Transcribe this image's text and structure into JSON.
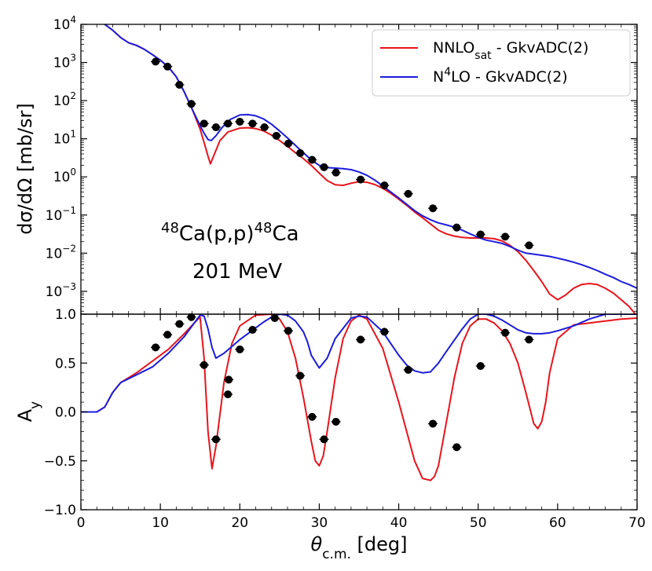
{
  "chart_data": [
    {
      "type": "line",
      "panel": "top",
      "yscale": "log",
      "xlim": [
        0,
        70
      ],
      "ylim_exp": [
        -3.6,
        4
      ],
      "ylabel": "dσ/dΩ [mb/sr]",
      "y_ticks": [
        {
          "base": "10",
          "exp": "4",
          "value": 10000
        },
        {
          "base": "10",
          "exp": "3",
          "value": 1000
        },
        {
          "base": "10",
          "exp": "2",
          "value": 100
        },
        {
          "base": "10",
          "exp": "1",
          "value": 10
        },
        {
          "base": "10",
          "exp": "0",
          "value": 1
        },
        {
          "base": "10",
          "exp": "−1",
          "value": 0.1
        },
        {
          "base": "10",
          "exp": "−2",
          "value": 0.01
        },
        {
          "base": "10",
          "exp": "−3",
          "value": 0.001
        }
      ],
      "annotation": {
        "pre": "48",
        "mid": "Ca(p,p)",
        "sup2": "48",
        "post": "Ca",
        "energy": "201 MeV"
      },
      "legend": [
        {
          "main": "NNLO",
          "sub": "sat",
          "rest": " - GkvADC(2)",
          "color": "#e8141c"
        },
        {
          "main": "N",
          "sup": "4",
          "rest": "LO - GkvADC(2)",
          "color": "#1c1cdc"
        }
      ],
      "series": [
        {
          "name": "NNLOsat - GkvADC(2)",
          "color": "#e8141c",
          "x": [
            3,
            4,
            5,
            6,
            7,
            8,
            9,
            10,
            11,
            12,
            13,
            14,
            15,
            15.5,
            16,
            16.3,
            16.7,
            17.5,
            18.5,
            20,
            21,
            22,
            23,
            24,
            25,
            26,
            27,
            28,
            29,
            30,
            31,
            32,
            33,
            34,
            35,
            36,
            37,
            38,
            39,
            40,
            41,
            42,
            43,
            44,
            45,
            46,
            47,
            48,
            49,
            50,
            51,
            52,
            53,
            54,
            55,
            56,
            57,
            58,
            59,
            60,
            61,
            62,
            63,
            64,
            65,
            66,
            67,
            68,
            69,
            70
          ],
          "y": [
            10000,
            7000,
            4500,
            3300,
            2800,
            2200,
            1600,
            1150,
            760,
            420,
            170,
            60,
            18,
            8,
            3.5,
            2.2,
            3.5,
            9,
            15,
            19,
            19.5,
            18.5,
            16,
            12.5,
            9,
            6.3,
            4.3,
            3,
            2,
            1.25,
            0.8,
            0.62,
            0.6,
            0.68,
            0.75,
            0.72,
            0.63,
            0.5,
            0.37,
            0.26,
            0.18,
            0.12,
            0.085,
            0.058,
            0.04,
            0.032,
            0.028,
            0.026,
            0.025,
            0.025,
            0.025,
            0.024,
            0.021,
            0.016,
            0.011,
            0.0065,
            0.0035,
            0.0018,
            0.00085,
            0.0006,
            0.0008,
            0.0012,
            0.0015,
            0.0016,
            0.0015,
            0.0012,
            0.0009,
            0.0006,
            0.0004,
            0.00022
          ]
        },
        {
          "name": "N4LO - GkvADC(2)",
          "color": "#1c1cdc",
          "x": [
            3,
            4,
            5,
            6,
            7,
            8,
            9,
            10,
            11,
            12,
            13,
            14,
            15,
            15.5,
            16,
            16.4,
            17,
            17.8,
            18.8,
            20,
            21,
            22,
            23,
            24,
            25,
            26,
            27,
            28,
            29,
            30,
            31,
            32,
            33,
            34,
            35,
            36,
            37,
            38,
            39,
            40,
            41,
            42,
            43,
            44,
            45,
            46,
            47,
            48,
            49,
            50,
            51,
            52,
            53,
            54,
            55,
            56,
            57,
            58,
            59,
            60,
            61,
            62,
            63,
            64,
            65,
            66,
            67,
            68,
            69,
            70
          ],
          "y": [
            10000,
            7000,
            4500,
            3300,
            2800,
            2200,
            1600,
            1150,
            760,
            420,
            170,
            60,
            22,
            14,
            9.5,
            9,
            12,
            20,
            32,
            42,
            43,
            40,
            33,
            24,
            16,
            10.5,
            6.7,
            4.3,
            2.8,
            2,
            1.75,
            1.7,
            1.65,
            1.55,
            1.35,
            1.1,
            0.82,
            0.58,
            0.4,
            0.28,
            0.19,
            0.13,
            0.095,
            0.075,
            0.062,
            0.055,
            0.048,
            0.04,
            0.032,
            0.026,
            0.022,
            0.02,
            0.018,
            0.015,
            0.012,
            0.01,
            0.0094,
            0.0088,
            0.0082,
            0.0074,
            0.0066,
            0.0058,
            0.005,
            0.0042,
            0.0035,
            0.0028,
            0.0023,
            0.0018,
            0.0015,
            0.0012
          ]
        },
        {
          "name": "data",
          "type": "scatter",
          "color": "#000000",
          "x": [
            9.4,
            10.9,
            12.4,
            13.9,
            15.5,
            17,
            18.5,
            20,
            21.6,
            23.1,
            24.6,
            26.1,
            27.6,
            29.1,
            30.6,
            32.1,
            35.2,
            38.2,
            41.2,
            44.3,
            47.3,
            50.3,
            53.4,
            56.4
          ],
          "y": [
            1050,
            780,
            260,
            82,
            25,
            20,
            25,
            28,
            25,
            20,
            12,
            7.5,
            4.2,
            2.8,
            1.8,
            1.3,
            0.85,
            0.6,
            0.36,
            0.15,
            0.047,
            0.031,
            0.027,
            0.016
          ]
        }
      ]
    },
    {
      "type": "line",
      "panel": "bottom",
      "xlim": [
        0,
        70
      ],
      "ylim": [
        -1.0,
        1.0
      ],
      "xlabel_main": "θ",
      "xlabel_sub": "c.m.",
      "xlabel_rest": " [deg]",
      "ylabel_main": "A",
      "ylabel_sub": "y",
      "x_ticks": [
        "0",
        "10",
        "20",
        "30",
        "40",
        "50",
        "60",
        "70"
      ],
      "y_ticks": [
        "1.0",
        "0.5",
        "0.0",
        "−0.5",
        "−1.0"
      ],
      "series": [
        {
          "name": "NNLOsat - GkvADC(2)",
          "color": "#e8141c",
          "x": [
            0,
            1,
            2,
            3,
            4,
            5,
            7,
            9,
            11,
            13,
            14.5,
            15,
            15.5,
            16,
            16.5,
            17,
            18,
            19,
            20,
            22,
            24,
            25,
            26,
            27,
            28,
            29,
            29.5,
            30,
            30.5,
            31,
            32,
            33,
            34,
            35,
            36,
            38,
            40,
            42,
            43,
            44,
            44.5,
            45,
            46,
            47,
            48,
            49,
            50,
            51,
            52,
            53,
            54,
            55,
            56,
            57,
            57.5,
            58,
            58.5,
            59,
            60,
            62,
            64,
            66,
            68,
            70
          ],
          "y": [
            0,
            0,
            0,
            0.05,
            0.2,
            0.3,
            0.4,
            0.52,
            0.64,
            0.8,
            0.93,
            0.97,
            0.55,
            -0.2,
            -0.58,
            -0.35,
            0.3,
            0.7,
            0.88,
            0.99,
            1.0,
            0.95,
            0.82,
            0.55,
            0.15,
            -0.3,
            -0.5,
            -0.55,
            -0.45,
            -0.2,
            0.35,
            0.75,
            0.93,
            0.99,
            0.95,
            0.65,
            0.1,
            -0.5,
            -0.68,
            -0.7,
            -0.66,
            -0.55,
            -0.1,
            0.35,
            0.7,
            0.88,
            0.95,
            0.95,
            0.91,
            0.83,
            0.7,
            0.5,
            0.2,
            -0.12,
            -0.17,
            -0.1,
            0.1,
            0.4,
            0.75,
            0.89,
            0.91,
            0.93,
            0.95,
            0.96
          ]
        },
        {
          "name": "N4LO - GkvADC(2)",
          "color": "#1c1cdc",
          "x": [
            0,
            1,
            2,
            3,
            4,
            5,
            7,
            9,
            11,
            13,
            14,
            15,
            15.5,
            16,
            16.5,
            17,
            18,
            19,
            20,
            22,
            23,
            24,
            25,
            26,
            27,
            28,
            28.5,
            29,
            30,
            31,
            32,
            34,
            35,
            36,
            38,
            40,
            41,
            42,
            43,
            44,
            45,
            46,
            48,
            49,
            50,
            51,
            52,
            53,
            54,
            55,
            56,
            57,
            58,
            59,
            60,
            62,
            64,
            66,
            70
          ],
          "y": [
            0,
            0,
            0,
            0.05,
            0.2,
            0.3,
            0.38,
            0.46,
            0.6,
            0.77,
            0.88,
            0.99,
            0.98,
            0.85,
            0.66,
            0.55,
            0.6,
            0.67,
            0.74,
            0.86,
            0.92,
            0.97,
            1.0,
            0.99,
            0.93,
            0.82,
            0.72,
            0.58,
            0.45,
            0.55,
            0.75,
            0.96,
            0.98,
            0.97,
            0.82,
            0.58,
            0.48,
            0.42,
            0.4,
            0.41,
            0.5,
            0.62,
            0.85,
            0.95,
            1.0,
            1.0,
            0.98,
            0.94,
            0.89,
            0.84,
            0.81,
            0.8,
            0.8,
            0.81,
            0.83,
            0.88,
            0.95,
            1.0,
            1.0
          ]
        },
        {
          "name": "data",
          "type": "scatter",
          "color": "#000000",
          "x": [
            9.4,
            10.9,
            12.4,
            13.9,
            15.5,
            17,
            18.5,
            18.6,
            20,
            21.6,
            24.4,
            26.1,
            27.6,
            29.1,
            30.6,
            32.1,
            35.2,
            38.2,
            41.2,
            44.3,
            47.3,
            50.3,
            53.4,
            56.4
          ],
          "y": [
            0.66,
            0.79,
            0.9,
            0.97,
            0.48,
            -0.28,
            0.18,
            0.33,
            0.64,
            0.84,
            0.96,
            0.83,
            0.37,
            -0.05,
            -0.28,
            -0.1,
            0.74,
            0.82,
            0.43,
            -0.12,
            -0.36,
            0.47,
            0.81,
            0.74
          ]
        }
      ]
    }
  ]
}
